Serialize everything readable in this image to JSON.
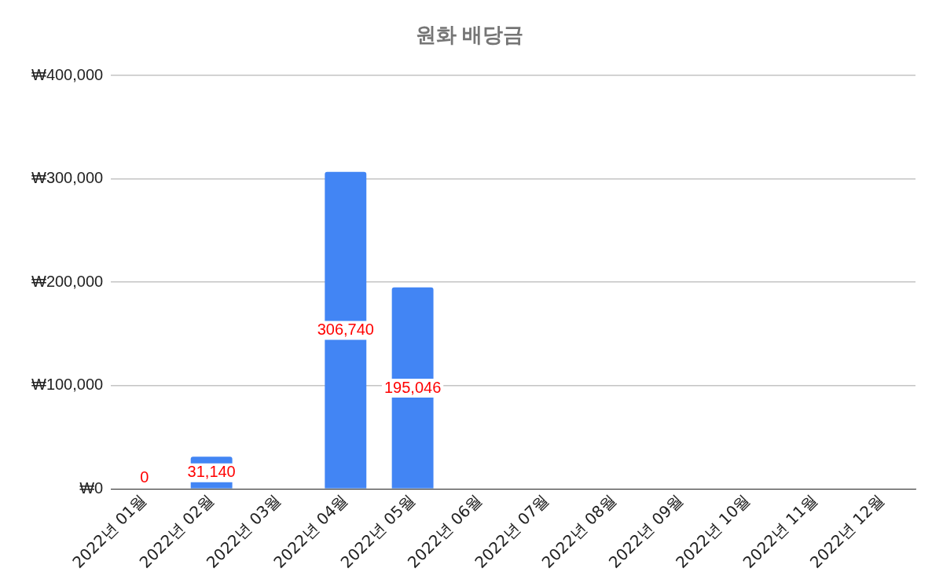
{
  "chart_data": {
    "type": "bar",
    "title": "원화 배당금",
    "categories": [
      "2022년 01월",
      "2022년 02월",
      "2022년 03월",
      "2022년 04월",
      "2022년 05월",
      "2022년 06월",
      "2022년 07월",
      "2022년 08월",
      "2022년 09월",
      "2022년 10월",
      "2022년 11월",
      "2022년 12월"
    ],
    "values": [
      0,
      31140,
      null,
      306740,
      195046,
      null,
      null,
      null,
      null,
      null,
      null,
      null
    ],
    "value_labels": [
      "0",
      "31,140",
      null,
      "306,740",
      "195,046",
      null,
      null,
      null,
      null,
      null,
      null,
      null
    ],
    "color": "#4285f4",
    "ylim": [
      0,
      400000
    ],
    "yticks": [
      {
        "value": 0,
        "label": "₩0"
      },
      {
        "value": 100000,
        "label": "₩100,000"
      },
      {
        "value": 200000,
        "label": "₩200,000"
      },
      {
        "value": 300000,
        "label": "₩300,000"
      },
      {
        "value": 400000,
        "label": "₩400,000"
      }
    ],
    "grid": "y",
    "legend": false
  }
}
